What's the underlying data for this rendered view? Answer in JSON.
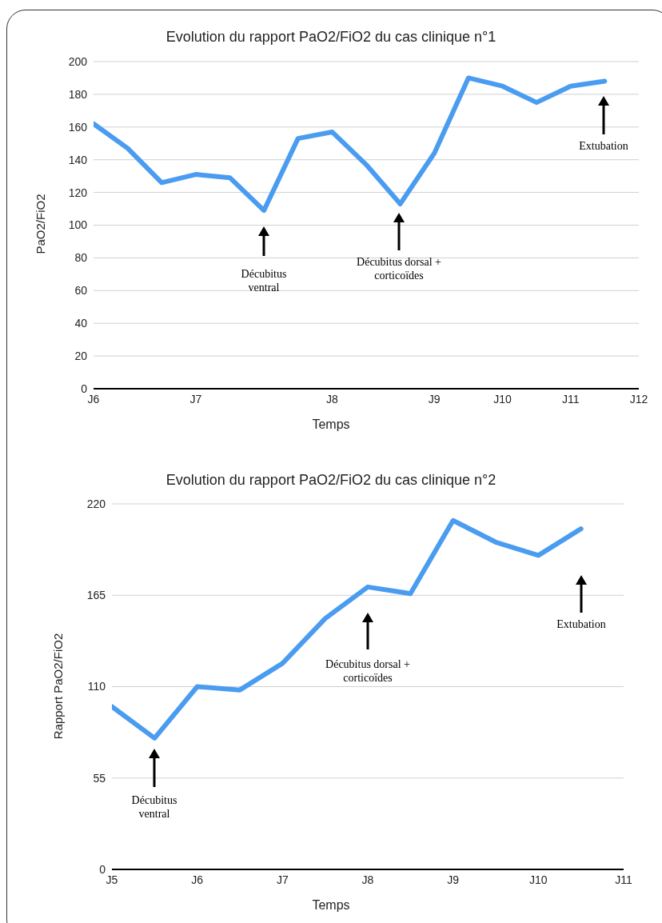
{
  "chart_data": [
    {
      "type": "line",
      "title": "Evolution du rapport PaO2/FiO2 du cas clinique n°1",
      "xlabel": "Temps",
      "ylabel": "PaO2/FiO2",
      "categories": [
        "J6",
        null,
        null,
        "J7",
        null,
        null,
        null,
        "J8",
        null,
        null,
        "J9",
        null,
        "J10",
        null,
        "J11",
        null,
        "J12"
      ],
      "series": [
        {
          "color": "#4a9cf0",
          "values": [
            162,
            147,
            126,
            131,
            129,
            109,
            153,
            157,
            137,
            113,
            144,
            190,
            185,
            175,
            185,
            188,
            null
          ]
        }
      ],
      "ylim": [
        0,
        200
      ],
      "yticks": [
        0,
        20,
        40,
        60,
        80,
        100,
        120,
        140,
        160,
        180,
        200
      ],
      "grid": "y",
      "legend": false,
      "marker": "none",
      "line_style": "solid",
      "annotations": [
        "Décubitus ventral",
        "Décubitus dorsal + corticoïdes",
        "Extubation"
      ]
    },
    {
      "type": "line",
      "title": "Evolution du rapport PaO2/FiO2 du cas clinique n°2",
      "xlabel": "Temps",
      "ylabel": "Rapport PaO2/FiO2",
      "categories": [
        "J5",
        null,
        "J6",
        null,
        "J7",
        null,
        "J8",
        null,
        "J9",
        null,
        "J10",
        null,
        "J11"
      ],
      "series": [
        {
          "color": "#4a9cf0",
          "values": [
            98,
            79,
            110,
            108,
            124,
            151,
            170,
            166,
            210,
            197,
            189,
            205,
            null
          ]
        }
      ],
      "ylim": [
        0,
        220
      ],
      "yticks": [
        0,
        55,
        110,
        165,
        220
      ],
      "grid": "y",
      "legend": false,
      "marker": "none",
      "line_style": "solid",
      "annotations": [
        "Décubitus ventral",
        "Décubitus dorsal + corticoïdes",
        "Extubation"
      ]
    }
  ]
}
